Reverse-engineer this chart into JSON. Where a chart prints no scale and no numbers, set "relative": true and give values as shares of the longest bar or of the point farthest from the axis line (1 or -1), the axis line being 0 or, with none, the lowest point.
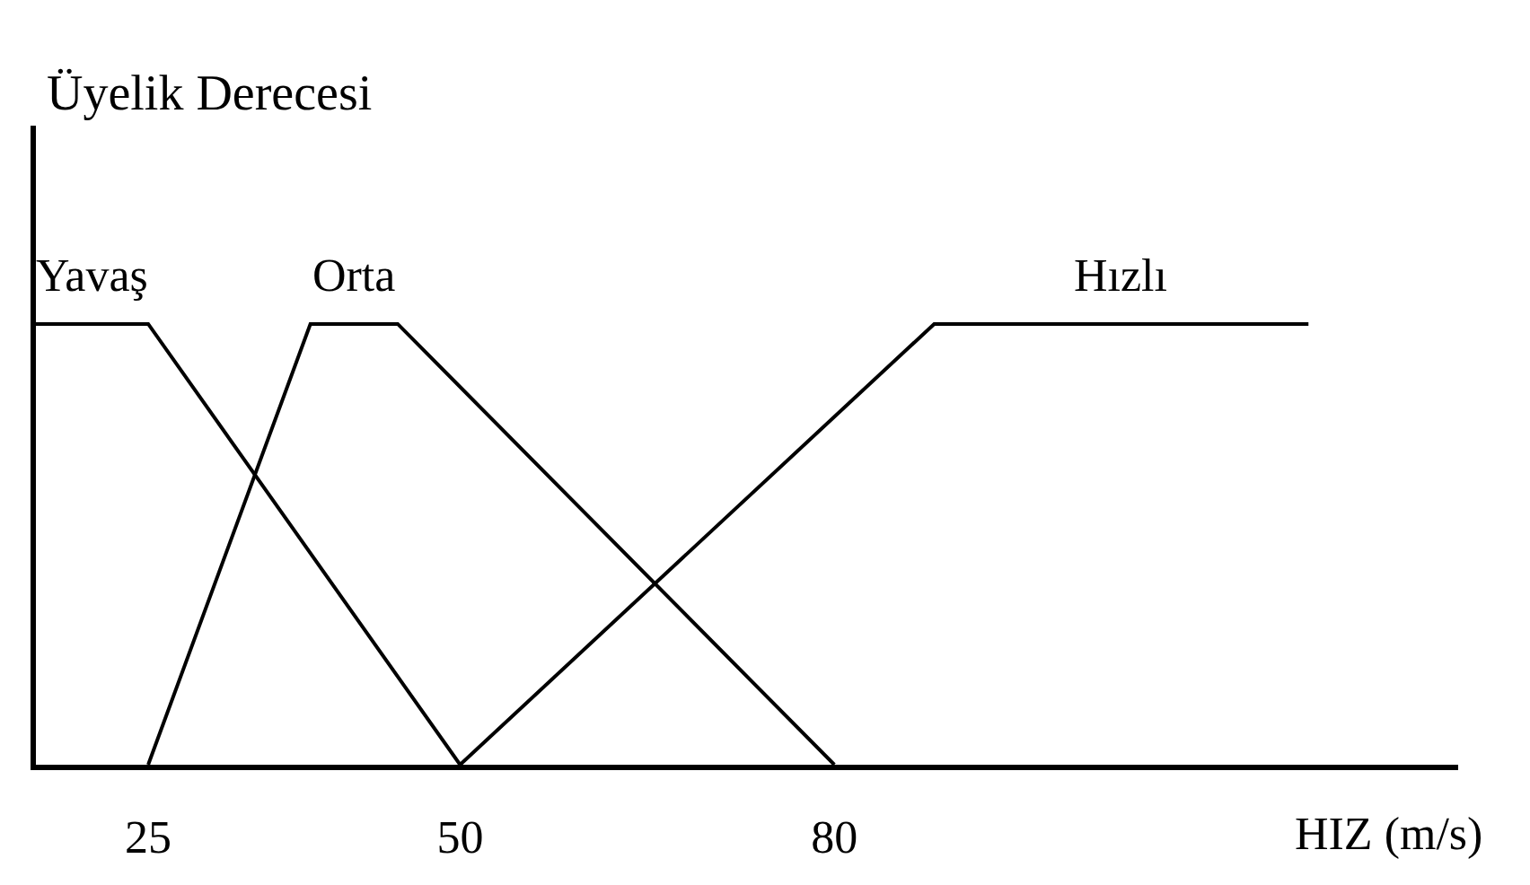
{
  "chart_data": {
    "type": "line",
    "relative": true,
    "ylabel": "Üyelik Derecesi",
    "xlabel": "HIZ (m/s)",
    "xlim": [
      16,
      130
    ],
    "xticks": [
      25,
      50,
      80
    ],
    "legend": false,
    "marker": "none",
    "line_style": "solid",
    "series": [
      {
        "name": "Yavaş",
        "color": "#000000",
        "x": [
          16,
          25,
          50
        ],
        "values": [
          1,
          1,
          0
        ]
      },
      {
        "name": "Orta",
        "color": "#000000",
        "x": [
          25,
          38,
          45,
          80
        ],
        "values": [
          0,
          1,
          1,
          0
        ]
      },
      {
        "name": "Hızlı",
        "color": "#000000",
        "x": [
          50,
          88,
          118
        ],
        "values": [
          0,
          1,
          1
        ]
      }
    ]
  }
}
